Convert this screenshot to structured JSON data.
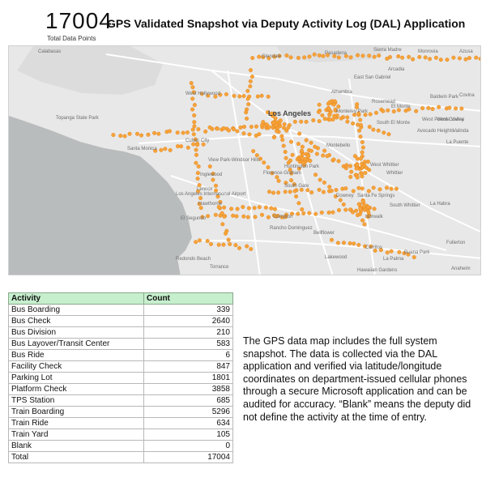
{
  "header": {
    "total": "17004",
    "total_caption": "Total Data Points",
    "title": "GPS Validated Snapshot via Deputy Activity Log (DAL) Application"
  },
  "map": {
    "colors": {
      "land": "#e8e8e8",
      "water": "#b9bcbd",
      "road": "#ffffff",
      "point": "#f6a33a",
      "point_stroke": "#e07f16"
    },
    "labels": {
      "calabasas": "Calabasas",
      "glendale": "Glendale",
      "pasadena": "Pasadena",
      "sierra_madre": "Sierra Madre",
      "monrovia": "Monrovia",
      "azusa": "Azusa",
      "covina": "Covina",
      "hollywood": "West Hollywood",
      "arcadia": "Arcadia",
      "alhambra": "Alhambra",
      "east_san_gabriel": "East San Gabriel",
      "rosemead": "Rosemead",
      "baldwin_park": "Baldwin Park",
      "west_covina": "West Covina",
      "el_monte": "El Monte",
      "monterey_park": "Monterey Park",
      "los_angeles": "Los Angeles",
      "south_el_monte": "South El Monte",
      "west_puente_valley": "West Puente Valley",
      "avocado_heights": "Avocado Heights",
      "valinda": "Valinda",
      "la_puente": "La Puente",
      "topanga": "Topanga State Park",
      "santa_monica": "Santa Monica",
      "culver_city": "Culver City",
      "view_park": "View Park-Windsor Hills",
      "montebello": "Montebello",
      "inglewood": "Inglewood",
      "florence": "Florence-Graham",
      "huntington_park": "Huntington Park",
      "south_gate": "South Gate",
      "west_whittier": "West Whittier",
      "whittier": "Whittier",
      "lax": "Los Angeles International Airport",
      "lennox": "Lennox",
      "hawthorne": "Hawthorne",
      "downey": "Downey",
      "santa_fe_springs": "Santa Fe Springs",
      "south_whittier": "South Whittier",
      "la_habra": "La Habra",
      "el_segundo": "El Segundo",
      "compton": "Compton",
      "norwalk": "Norwalk",
      "rancho_dominguez": "Rancho Dominguez",
      "bellflower": "Bellflower",
      "cerritos": "Cerritos",
      "buena_park": "Buena Park",
      "fullerton": "Fullerton",
      "redondo_beach": "Redondo Beach",
      "torrance": "Torrance",
      "lakewood": "Lakewood",
      "la_palma": "La Palma",
      "hawaiian_gardens": "Hawaiian Gardens",
      "anaheim": "Anaheim"
    }
  },
  "table": {
    "headers": {
      "activity": "Activity",
      "count": "Count"
    },
    "rows": [
      {
        "activity": "Bus Boarding",
        "count": "339"
      },
      {
        "activity": "Bus Check",
        "count": "2640"
      },
      {
        "activity": "Bus Division",
        "count": "210"
      },
      {
        "activity": "Bus Layover/Transit Center",
        "count": "583"
      },
      {
        "activity": "Bus Ride",
        "count": "6"
      },
      {
        "activity": "Facility Check",
        "count": "847"
      },
      {
        "activity": "Parking Lot",
        "count": "1801"
      },
      {
        "activity": "Platform Check",
        "count": "3858"
      },
      {
        "activity": "TPS Station",
        "count": "685"
      },
      {
        "activity": "Train Boarding",
        "count": "5296"
      },
      {
        "activity": "Train Ride",
        "count": "634"
      },
      {
        "activity": "Train Yard",
        "count": "105"
      },
      {
        "activity": "Blank",
        "count": "0"
      },
      {
        "activity": "Total",
        "count": "17004"
      }
    ]
  },
  "note": "The GPS data map includes the full system snapshot. The data is collected via the DAL application and verified via latitude/longitude coordinates on department-issued cellular phones through a secure Microsoft application and can be audited for accuracy. “Blank” means the deputy did not define the activity at the time of entry."
}
